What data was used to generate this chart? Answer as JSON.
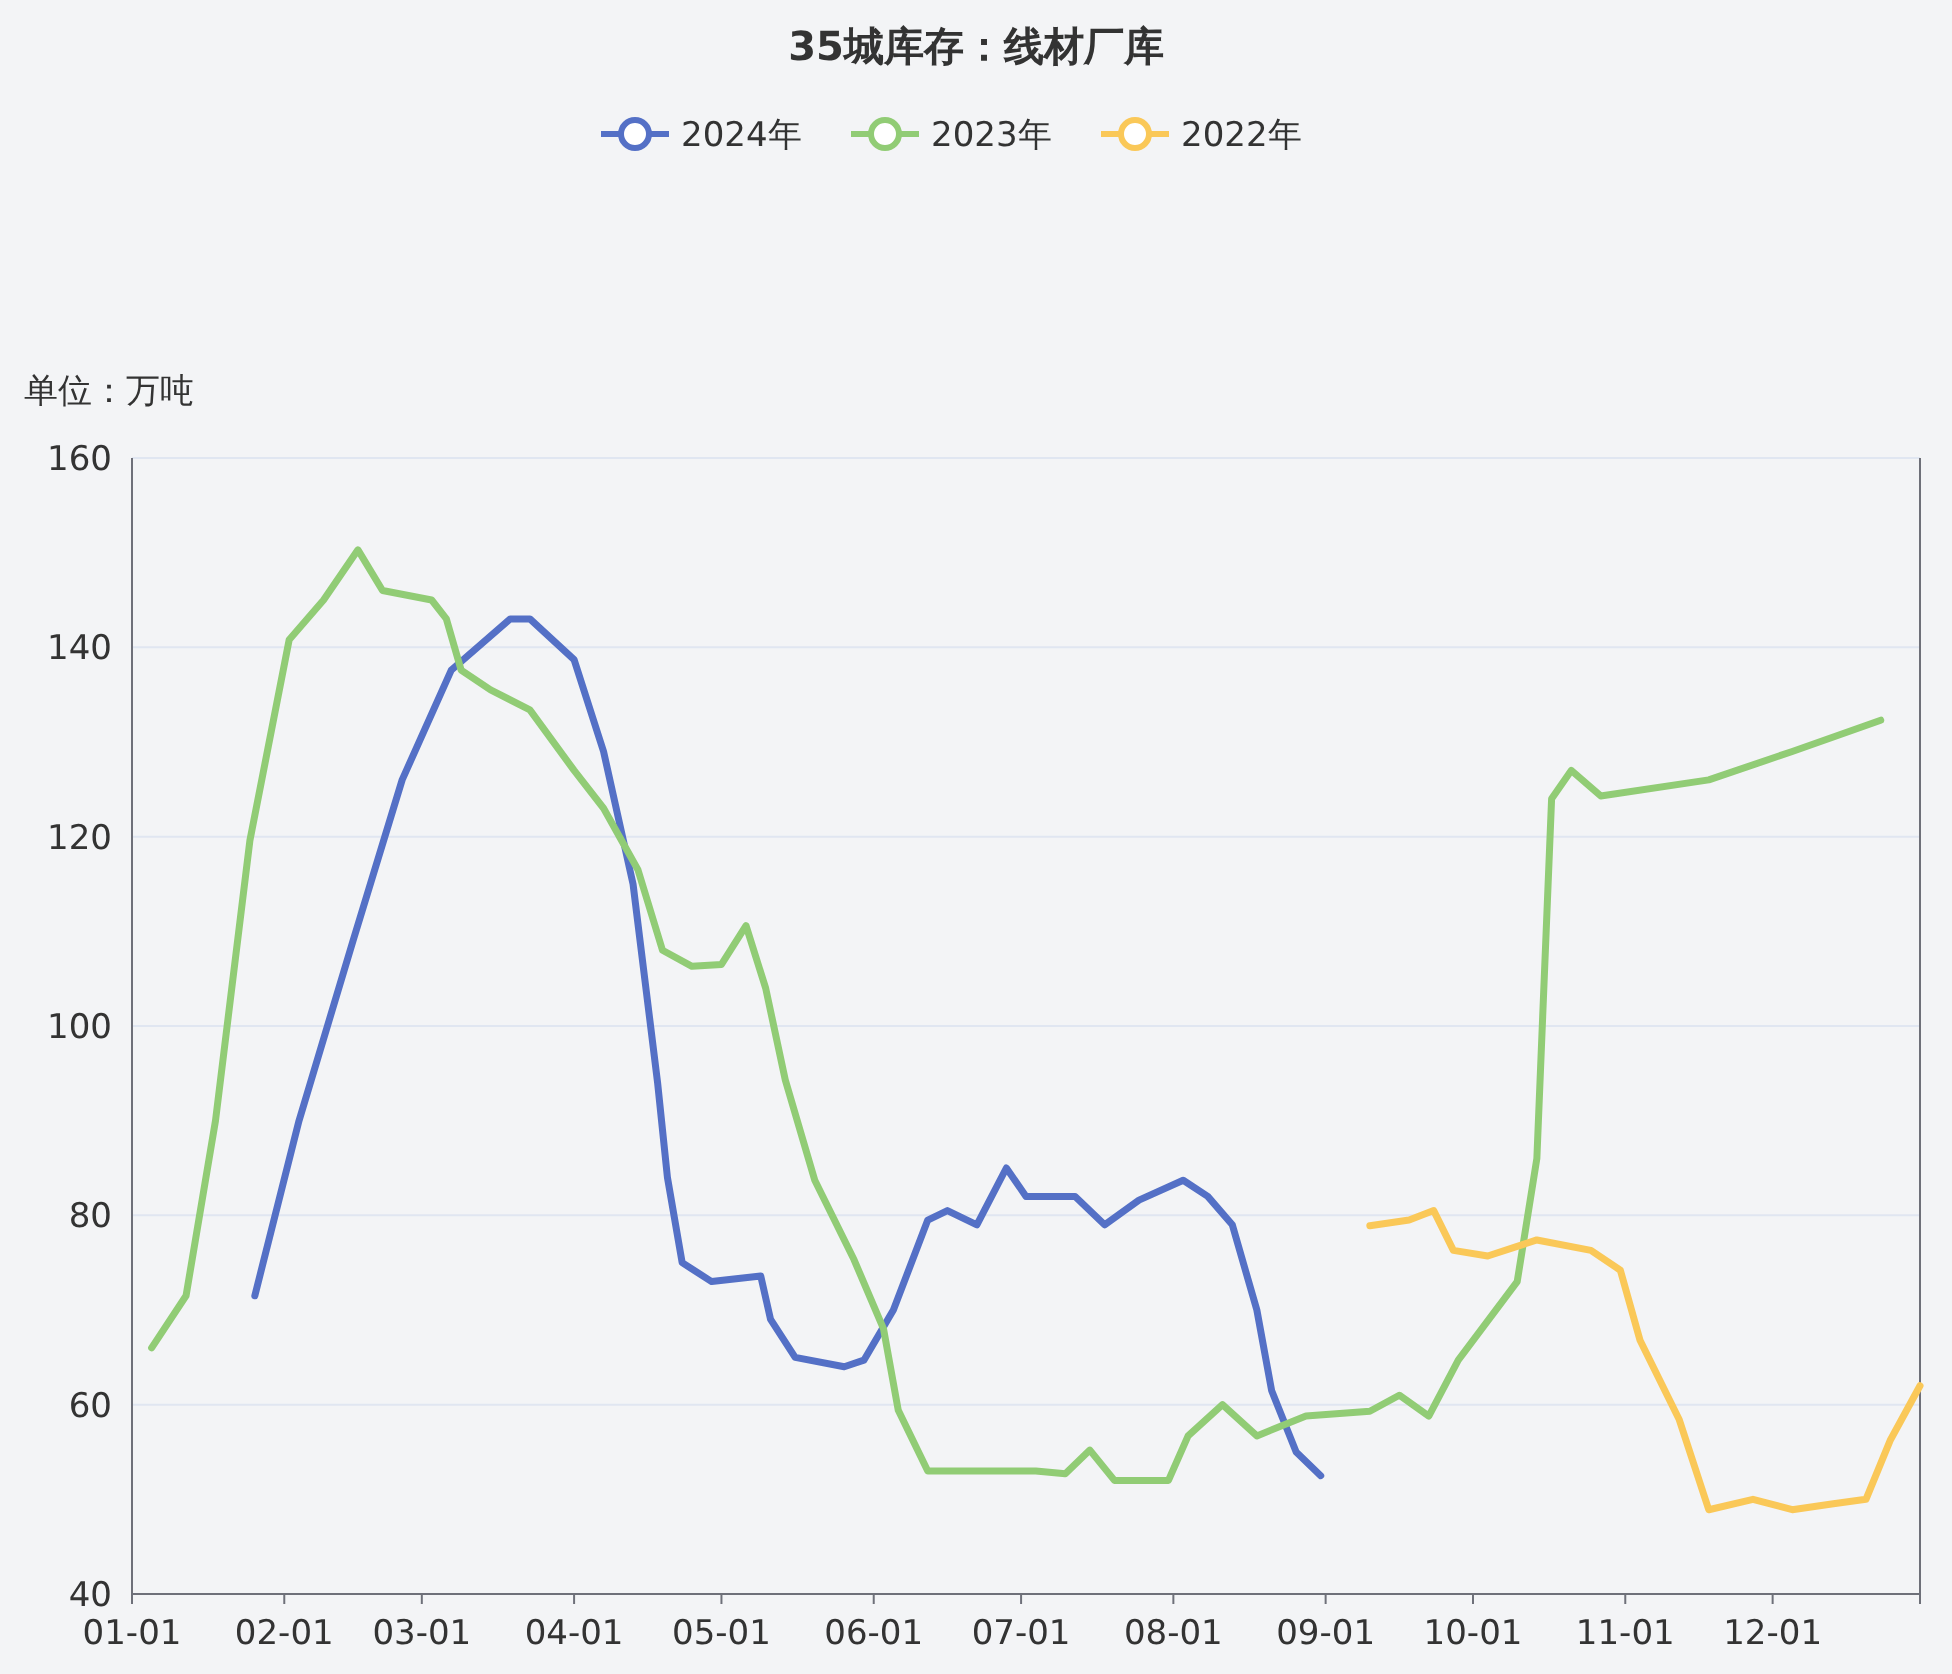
{
  "chart_data": {
    "type": "line",
    "title": "35城库存：线材厂库",
    "ylabel": "单位：万吨",
    "legend": "top",
    "grid": "y",
    "marker": "none",
    "line_style": "solid",
    "xlim": [
      "--01-01",
      "--12-31"
    ],
    "xticks": [
      {
        "value": "--01-01",
        "label": "01-01"
      },
      {
        "value": "--02-01",
        "label": "02-01"
      },
      {
        "value": "--03-01",
        "label": "03-01"
      },
      {
        "value": "--04-01",
        "label": "04-01"
      },
      {
        "value": "--05-01",
        "label": "05-01"
      },
      {
        "value": "--06-01",
        "label": "06-01"
      },
      {
        "value": "--07-01",
        "label": "07-01"
      },
      {
        "value": "--08-01",
        "label": "08-01"
      },
      {
        "value": "--09-01",
        "label": "09-01"
      },
      {
        "value": "--10-01",
        "label": "10-01"
      },
      {
        "value": "--11-01",
        "label": "11-01"
      },
      {
        "value": "--12-01",
        "label": "12-01"
      }
    ],
    "ylim": [
      40,
      160
    ],
    "yticks": [
      40,
      60,
      80,
      100,
      120,
      140,
      160
    ],
    "series": [
      {
        "name": "2024年",
        "color": "#5470c6",
        "x": [
          "--01-26",
          "--02-04",
          "--02-15",
          "--02-25",
          "--03-07",
          "--03-19",
          "--03-23",
          "--04-01",
          "--04-07",
          "--04-13",
          "--04-18",
          "--04-20",
          "--04-23",
          "--04-29",
          "--05-09",
          "--05-11",
          "--05-16",
          "--05-26",
          "--05-30",
          "--06-05",
          "--06-12",
          "--06-16",
          "--06-22",
          "--06-28",
          "--07-02",
          "--07-12",
          "--07-18",
          "--07-25",
          "--08-03",
          "--08-08",
          "--08-13",
          "--08-18",
          "--08-21",
          "--08-26",
          "--08-31"
        ],
        "values": [
          71.5,
          90,
          109,
          126,
          137.6,
          143,
          143,
          138.7,
          129,
          115,
          94,
          84,
          75,
          73,
          73.6,
          69,
          65,
          64,
          64.7,
          70,
          79.5,
          80.5,
          79,
          85,
          82,
          82,
          79,
          81.6,
          83.7,
          82,
          79,
          70,
          61.5,
          55,
          52.5
        ]
      },
      {
        "name": "2023年",
        "color": "#91cc75",
        "x": [
          "--01-05",
          "--01-12",
          "--01-18",
          "--01-25",
          "--02-02",
          "--02-09",
          "--02-16",
          "--02-21",
          "--03-03",
          "--03-06",
          "--03-09",
          "--03-15",
          "--03-23",
          "--04-01",
          "--04-07",
          "--04-14",
          "--04-19",
          "--04-25",
          "--05-01",
          "--05-06",
          "--05-10",
          "--05-14",
          "--05-20",
          "--05-28",
          "--06-03",
          "--06-06",
          "--06-12",
          "--06-24",
          "--07-04",
          "--07-10",
          "--07-15",
          "--07-20",
          "--07-31",
          "--08-04",
          "--08-11",
          "--08-18",
          "--08-28",
          "--09-10",
          "--09-16",
          "--09-22",
          "--09-28",
          "--10-10",
          "--10-14",
          "--10-17",
          "--10-21",
          "--10-27",
          "--11-18",
          "--12-05",
          "--12-23"
        ],
        "values": [
          66,
          71.5,
          90,
          119.6,
          140.8,
          145,
          150.3,
          146,
          145,
          143,
          137.6,
          135.5,
          133.4,
          127,
          123,
          116.5,
          108,
          106.3,
          106.5,
          110.6,
          104,
          94.3,
          83.7,
          75.3,
          68,
          59.4,
          53,
          53,
          53,
          52.7,
          55.2,
          52,
          52,
          56.7,
          60,
          56.7,
          58.8,
          59.3,
          61,
          58.8,
          64.7,
          73,
          86,
          124,
          127,
          124.3,
          126,
          129,
          132.3
        ]
      },
      {
        "name": "2022年",
        "color": "#fac858",
        "x": [
          "--09-10",
          "--09-18",
          "--09-23",
          "--09-27",
          "--10-04",
          "--10-14",
          "--10-25",
          "--10-31",
          "--11-04",
          "--11-12",
          "--11-18",
          "--11-27",
          "--12-05",
          "--12-13",
          "--12-20",
          "--12-25",
          "--12-31"
        ],
        "values": [
          78.9,
          79.5,
          80.5,
          76.3,
          75.7,
          77.4,
          76.3,
          74.2,
          66.8,
          58.4,
          48.9,
          50,
          48.9,
          49.5,
          50,
          56.3,
          62
        ]
      }
    ]
  }
}
